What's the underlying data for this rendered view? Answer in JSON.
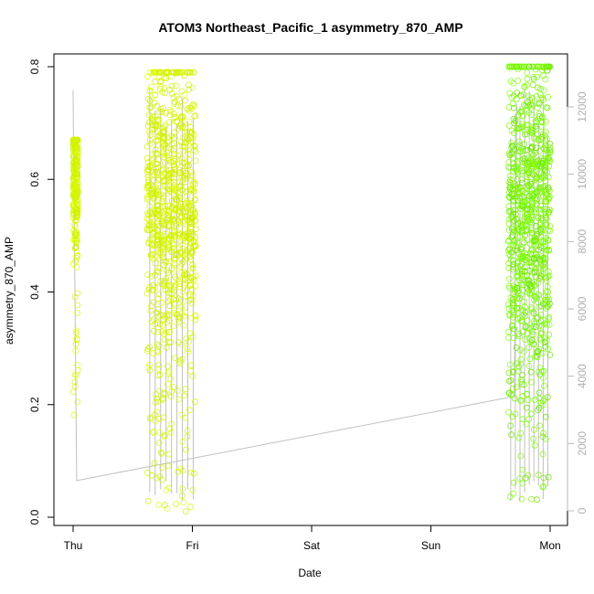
{
  "chart_data": {
    "type": "scatter",
    "title": "ATOM3 Northeast_Pacific_1 asymmetry_870_AMP",
    "xlabel": "Date",
    "ylabel": "asymmetry_870_AMP",
    "x_ticks": [
      "Thu",
      "Fri",
      "Sat",
      "Sun",
      "Mon"
    ],
    "ylim": [
      0,
      0.8
    ],
    "y_ticks": [
      "0.0",
      "0.2",
      "0.4",
      "0.6",
      "0.8"
    ],
    "y2lim": [
      0,
      12000
    ],
    "y2_ticks": [
      "0",
      "2000",
      "4000",
      "6000",
      "8000",
      "10000",
      "12000"
    ],
    "grid": false,
    "series": [
      {
        "marker": "open-circle",
        "color_gradient": [
          "#ccee00",
          "#ddff00",
          "#77ff00"
        ],
        "clusters": [
          {
            "x_range_days": [
              0.0,
              0.04
            ],
            "y_center": 0.6,
            "y_spread": 0.06,
            "y_min": 0.18,
            "y_max": 0.67,
            "count": 260
          },
          {
            "x_range_days": [
              0.62,
              1.03
            ],
            "y_center": 0.57,
            "y_spread": 0.14,
            "y_min": 0.01,
            "y_max": 0.79,
            "count": 900
          },
          {
            "x_range_days": [
              3.65,
              4.0
            ],
            "y_center": 0.56,
            "y_spread": 0.15,
            "y_min": 0.03,
            "y_max": 0.8,
            "count": 900
          }
        ]
      },
      {
        "axis": "right",
        "color": "#c0c0c0",
        "type": "line",
        "description_points": [
          {
            "x_days": 0.0,
            "y2": 12500
          },
          {
            "x_days": 0.0,
            "y2": 12300
          },
          {
            "x_days": 0.03,
            "y2": 900
          },
          {
            "x_days": 3.7,
            "y2": 3400
          },
          {
            "x_days": 3.72,
            "y2": 12100
          }
        ]
      }
    ]
  }
}
